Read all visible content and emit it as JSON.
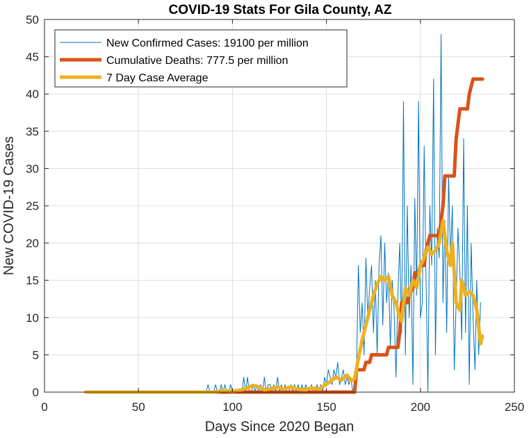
{
  "chart_data": {
    "type": "line",
    "title": "COVID-19 Stats For Gila County, AZ",
    "xlabel": "Days Since 2020 Began",
    "ylabel": "New COVID-19 Cases",
    "xlim": [
      0,
      250
    ],
    "ylim": [
      0,
      50
    ],
    "xticks": [
      0,
      50,
      100,
      150,
      200,
      250
    ],
    "yticks": [
      0,
      5,
      10,
      15,
      20,
      25,
      30,
      35,
      40,
      45,
      50
    ],
    "grid": true,
    "legend_position": "top-left",
    "series": [
      {
        "name": "New Confirmed Cases: 19100 per million",
        "color": "#0072BD",
        "width": "thin",
        "points": [
          [
            22,
            0
          ],
          [
            30,
            0
          ],
          [
            40,
            0
          ],
          [
            50,
            0
          ],
          [
            60,
            0
          ],
          [
            70,
            0
          ],
          [
            80,
            0
          ],
          [
            86,
            0
          ],
          [
            87,
            1
          ],
          [
            88,
            0
          ],
          [
            90,
            0
          ],
          [
            91,
            1
          ],
          [
            92,
            0
          ],
          [
            93,
            0
          ],
          [
            94,
            1
          ],
          [
            95,
            0
          ],
          [
            96,
            1
          ],
          [
            97,
            0
          ],
          [
            98,
            0
          ],
          [
            99,
            1
          ],
          [
            100,
            0
          ],
          [
            101,
            0
          ],
          [
            102,
            0
          ],
          [
            104,
            0
          ],
          [
            105,
            0
          ],
          [
            106,
            2
          ],
          [
            107,
            0
          ],
          [
            108,
            2
          ],
          [
            109,
            0
          ],
          [
            110,
            0
          ],
          [
            111,
            1
          ],
          [
            112,
            0
          ],
          [
            113,
            1
          ],
          [
            114,
            0
          ],
          [
            115,
            1
          ],
          [
            116,
            0
          ],
          [
            117,
            2
          ],
          [
            118,
            0
          ],
          [
            119,
            1
          ],
          [
            120,
            1
          ],
          [
            121,
            0
          ],
          [
            122,
            1
          ],
          [
            123,
            0
          ],
          [
            124,
            2
          ],
          [
            125,
            0
          ],
          [
            126,
            1
          ],
          [
            127,
            0
          ],
          [
            128,
            1
          ],
          [
            129,
            0
          ],
          [
            130,
            0
          ],
          [
            131,
            1
          ],
          [
            132,
            0
          ],
          [
            133,
            1
          ],
          [
            134,
            0
          ],
          [
            135,
            1
          ],
          [
            136,
            0
          ],
          [
            137,
            1
          ],
          [
            138,
            0
          ],
          [
            139,
            1
          ],
          [
            140,
            0
          ],
          [
            141,
            0
          ],
          [
            142,
            1
          ],
          [
            143,
            0
          ],
          [
            144,
            0
          ],
          [
            145,
            1
          ],
          [
            146,
            0
          ],
          [
            147,
            1
          ],
          [
            148,
            0
          ],
          [
            149,
            2
          ],
          [
            150,
            1
          ],
          [
            151,
            3
          ],
          [
            152,
            2
          ],
          [
            153,
            1
          ],
          [
            154,
            3
          ],
          [
            155,
            2
          ],
          [
            156,
            4
          ],
          [
            157,
            1
          ],
          [
            158,
            2
          ],
          [
            159,
            3
          ],
          [
            160,
            1
          ],
          [
            161,
            2
          ],
          [
            162,
            1
          ],
          [
            163,
            2
          ],
          [
            164,
            0
          ],
          [
            165,
            1
          ],
          [
            166,
            3
          ],
          [
            167,
            17
          ],
          [
            168,
            8
          ],
          [
            169,
            12
          ],
          [
            170,
            5
          ],
          [
            171,
            18
          ],
          [
            172,
            10
          ],
          [
            173,
            14
          ],
          [
            174,
            17
          ],
          [
            175,
            8
          ],
          [
            176,
            15
          ],
          [
            177,
            5
          ],
          [
            178,
            17
          ],
          [
            179,
            21
          ],
          [
            180,
            9
          ],
          [
            181,
            20
          ],
          [
            182,
            12
          ],
          [
            183,
            16
          ],
          [
            184,
            6
          ],
          [
            185,
            15
          ],
          [
            186,
            11
          ],
          [
            187,
            2
          ],
          [
            188,
            13
          ],
          [
            189,
            20
          ],
          [
            190,
            8
          ],
          [
            191,
            39
          ],
          [
            192,
            5
          ],
          [
            193,
            25
          ],
          [
            194,
            10
          ],
          [
            195,
            17
          ],
          [
            196,
            1
          ],
          [
            197,
            26
          ],
          [
            198,
            13
          ],
          [
            199,
            39
          ],
          [
            200,
            10
          ],
          [
            201,
            12
          ],
          [
            202,
            33
          ],
          [
            203,
            15
          ],
          [
            204,
            0
          ],
          [
            205,
            25
          ],
          [
            206,
            17
          ],
          [
            207,
            42
          ],
          [
            208,
            5
          ],
          [
            209,
            22
          ],
          [
            210,
            18
          ],
          [
            211,
            48
          ],
          [
            212,
            12
          ],
          [
            213,
            23
          ],
          [
            214,
            8
          ],
          [
            215,
            29
          ],
          [
            216,
            18
          ],
          [
            217,
            25
          ],
          [
            218,
            3
          ],
          [
            219,
            12
          ],
          [
            220,
            22
          ],
          [
            221,
            16
          ],
          [
            222,
            7
          ],
          [
            223,
            34
          ],
          [
            224,
            8
          ],
          [
            225,
            25
          ],
          [
            226,
            1
          ],
          [
            227,
            20
          ],
          [
            228,
            10
          ],
          [
            229,
            3
          ],
          [
            230,
            15
          ],
          [
            231,
            5
          ],
          [
            232,
            12
          ]
        ]
      },
      {
        "name": "Cumulative Deaths: 777.5 per million",
        "color": "#D95319",
        "width": "thick",
        "points": [
          [
            22,
            0
          ],
          [
            165,
            0
          ],
          [
            166,
            3
          ],
          [
            170,
            3
          ],
          [
            171,
            4
          ],
          [
            173,
            4
          ],
          [
            174,
            5
          ],
          [
            182,
            5
          ],
          [
            183,
            6
          ],
          [
            188,
            6
          ],
          [
            189,
            8
          ],
          [
            190,
            12
          ],
          [
            193,
            12
          ],
          [
            194,
            13
          ],
          [
            196,
            14
          ],
          [
            197,
            16
          ],
          [
            199,
            16
          ],
          [
            200,
            17
          ],
          [
            202,
            17
          ],
          [
            203,
            19
          ],
          [
            204,
            20
          ],
          [
            205,
            21
          ],
          [
            210,
            21
          ],
          [
            211,
            23
          ],
          [
            212,
            25
          ],
          [
            213,
            29
          ],
          [
            218,
            29
          ],
          [
            219,
            34
          ],
          [
            220,
            36
          ],
          [
            221,
            38
          ],
          [
            225,
            38
          ],
          [
            226,
            40
          ],
          [
            227,
            41
          ],
          [
            228,
            42
          ],
          [
            233,
            42
          ]
        ]
      },
      {
        "name": "7 Day Case Average",
        "color": "#EDB120",
        "width": "thick",
        "points": [
          [
            22,
            0
          ],
          [
            90,
            0
          ],
          [
            95,
            0.2
          ],
          [
            100,
            0.1
          ],
          [
            105,
            0.3
          ],
          [
            108,
            0.6
          ],
          [
            111,
            0.9
          ],
          [
            114,
            0.7
          ],
          [
            117,
            0.3
          ],
          [
            121,
            0.5
          ],
          [
            124,
            0.7
          ],
          [
            127,
            0.4
          ],
          [
            131,
            0.7
          ],
          [
            135,
            0.4
          ],
          [
            139,
            0.3
          ],
          [
            142,
            0.6
          ],
          [
            146,
            0.4
          ],
          [
            149,
            0.9
          ],
          [
            152,
            1.4
          ],
          [
            155,
            2.0
          ],
          [
            158,
            1.6
          ],
          [
            161,
            2.3
          ],
          [
            163,
            1.5
          ],
          [
            165,
            1.8
          ],
          [
            167,
            4.5
          ],
          [
            169,
            7
          ],
          [
            171,
            9
          ],
          [
            173,
            11
          ],
          [
            175,
            13
          ],
          [
            177,
            14.5
          ],
          [
            179,
            15.5
          ],
          [
            181,
            15
          ],
          [
            183,
            15.5
          ],
          [
            185,
            13
          ],
          [
            187,
            12
          ],
          [
            189,
            10
          ],
          [
            190,
            9.5
          ],
          [
            192,
            14
          ],
          [
            194,
            13
          ],
          [
            196,
            15
          ],
          [
            198,
            14
          ],
          [
            200,
            17
          ],
          [
            202,
            18
          ],
          [
            204,
            19.5
          ],
          [
            206,
            18.5
          ],
          [
            208,
            19
          ],
          [
            210,
            20
          ],
          [
            212,
            23
          ],
          [
            213,
            21
          ],
          [
            214,
            19
          ],
          [
            216,
            17
          ],
          [
            217,
            20
          ],
          [
            219,
            12
          ],
          [
            221,
            11
          ],
          [
            222,
            15
          ],
          [
            224,
            13
          ],
          [
            226,
            13.5
          ],
          [
            228,
            13
          ],
          [
            230,
            11
          ],
          [
            232,
            6.5
          ],
          [
            233,
            7.5
          ]
        ]
      }
    ]
  }
}
